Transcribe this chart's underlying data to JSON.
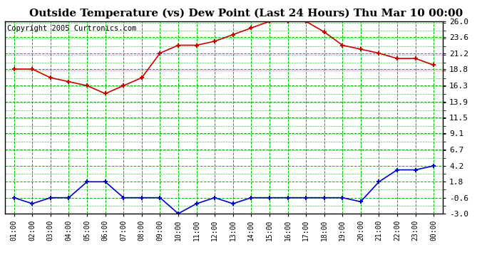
{
  "title": "Outside Temperature (vs) Dew Point (Last 24 Hours) Thu Mar 10 00:00",
  "copyright": "Copyright 2005 Curtronics.com",
  "x_labels": [
    "01:00",
    "02:00",
    "03:00",
    "04:00",
    "05:00",
    "06:00",
    "07:00",
    "08:00",
    "09:00",
    "10:00",
    "11:00",
    "12:00",
    "13:00",
    "14:00",
    "15:00",
    "16:00",
    "17:00",
    "18:00",
    "19:00",
    "20:00",
    "21:00",
    "22:00",
    "23:00",
    "00:00"
  ],
  "temp_data": [
    18.8,
    18.8,
    17.5,
    16.9,
    16.3,
    15.1,
    16.3,
    17.5,
    21.2,
    22.4,
    22.4,
    23.0,
    24.0,
    25.0,
    26.0,
    26.0,
    26.0,
    24.4,
    22.4,
    21.8,
    21.2,
    20.4,
    20.4,
    19.4
  ],
  "dew_data": [
    -0.6,
    -1.5,
    -0.6,
    -0.6,
    1.8,
    1.8,
    -0.6,
    -0.6,
    -0.6,
    -3.0,
    -1.5,
    -0.6,
    -1.5,
    -0.6,
    -0.6,
    -0.6,
    -0.6,
    -0.6,
    -0.6,
    -1.2,
    1.8,
    3.6,
    3.6,
    4.2
  ],
  "yticks": [
    26.0,
    23.6,
    21.2,
    18.8,
    16.3,
    13.9,
    11.5,
    9.1,
    6.7,
    4.2,
    1.8,
    -0.6,
    -3.0
  ],
  "ymin": -3.0,
  "ymax": 26.0,
  "temp_color": "#cc0000",
  "dew_color": "#0000cc",
  "grid_color": "#00bb00",
  "bg_color": "#ffffff",
  "plot_bg": "#ffffff",
  "title_fontsize": 11,
  "copyright_fontsize": 7.5
}
